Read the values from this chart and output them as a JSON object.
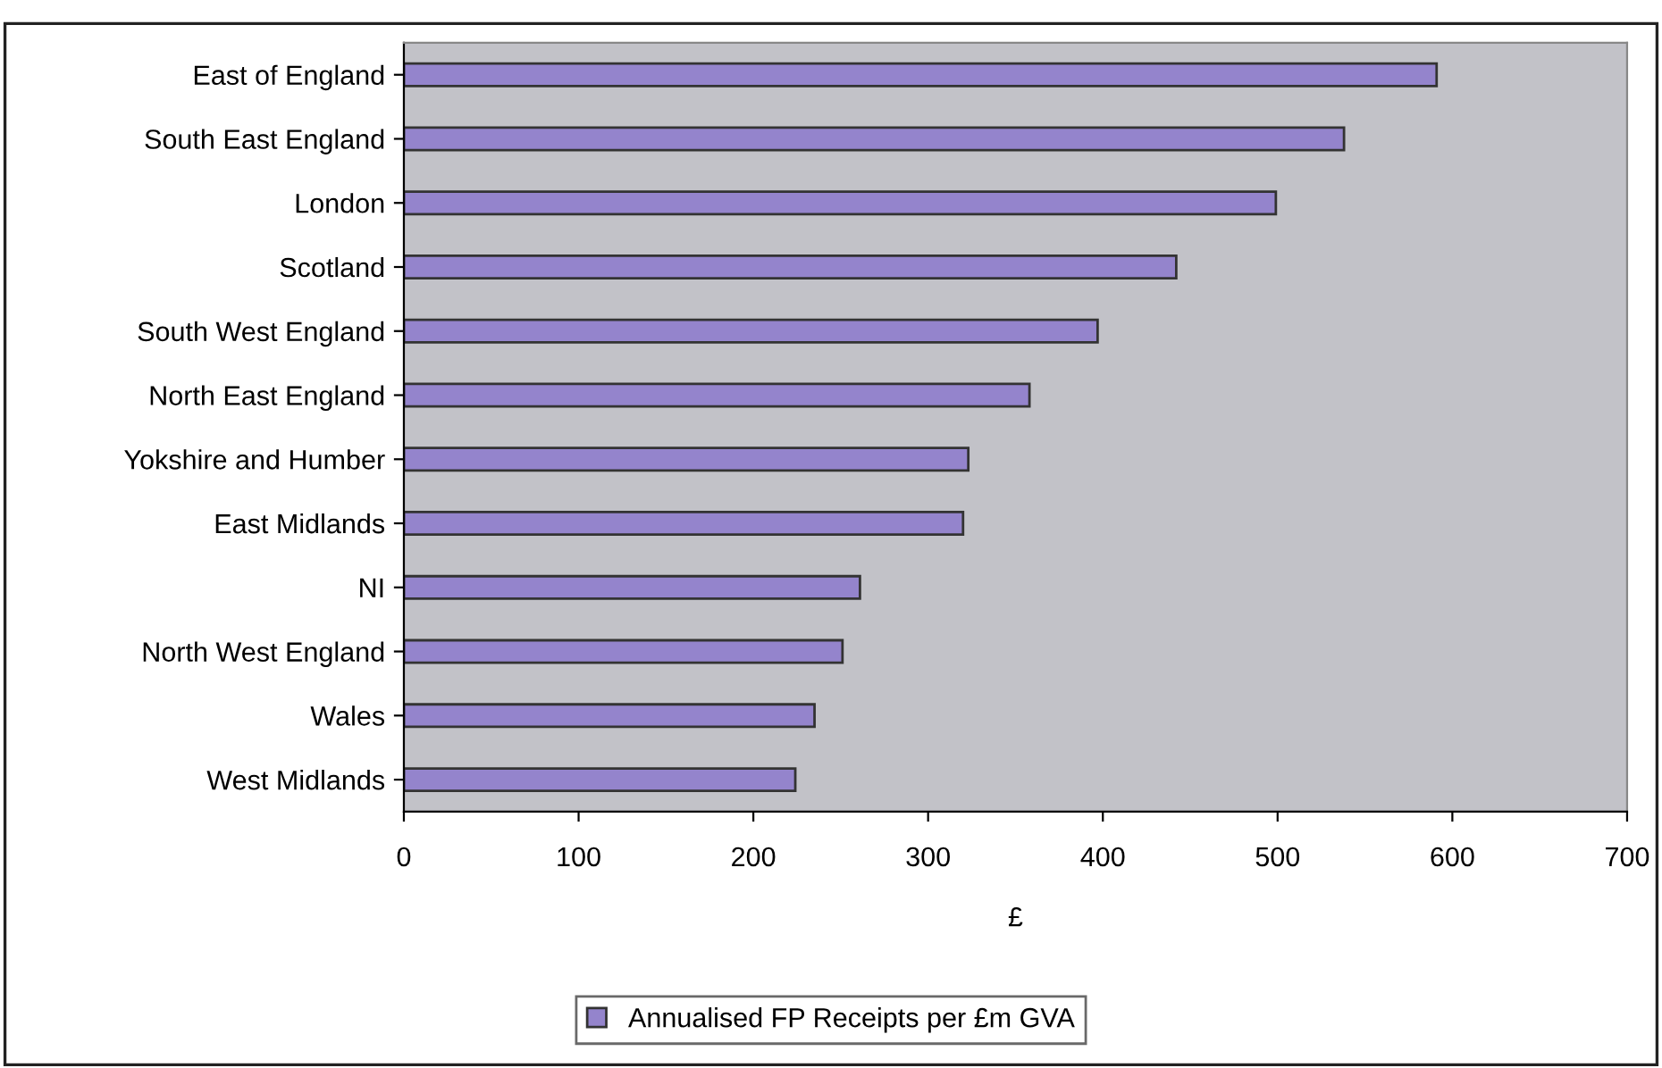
{
  "chart_data": {
    "type": "bar",
    "orientation": "horizontal",
    "categories": [
      "East of England",
      "South East England",
      "London",
      "Scotland",
      "South West England",
      "North East England",
      "Yokshire and Humber",
      "East Midlands",
      "NI",
      "North West England",
      "Wales",
      "West Midlands"
    ],
    "series": [
      {
        "name": "Annualised FP Receipts per £m GVA",
        "color": "#9484cc",
        "values": [
          591,
          538,
          499,
          442,
          397,
          358,
          323,
          320,
          261,
          251,
          235,
          224
        ]
      }
    ],
    "xlabel": "£",
    "xlim": [
      0,
      700
    ],
    "xticks": [
      0,
      100,
      200,
      300,
      400,
      500,
      600,
      700
    ],
    "grid": false,
    "legend": "bottom"
  }
}
